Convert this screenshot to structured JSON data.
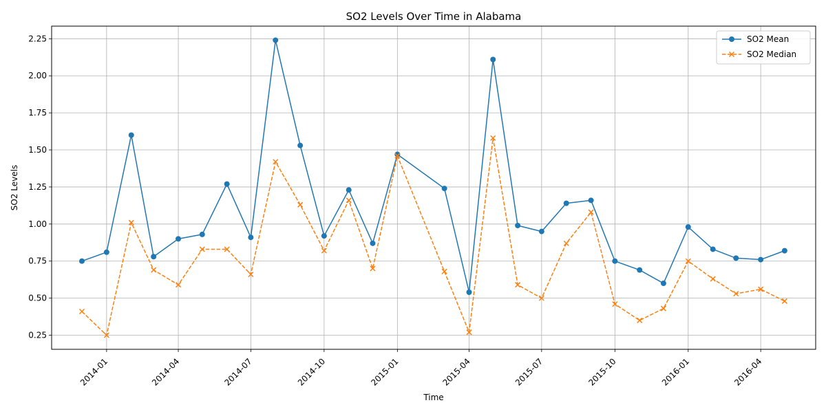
{
  "chart_data": {
    "type": "line",
    "title": "SO2 Levels Over Time in Alabama",
    "xlabel": "Time",
    "ylabel": "SO2 Levels",
    "x": [
      "2013-12-01",
      "2014-01-01",
      "2014-02-01",
      "2014-03-01",
      "2014-04-01",
      "2014-05-01",
      "2014-06-01",
      "2014-07-01",
      "2014-08-01",
      "2014-09-01",
      "2014-10-01",
      "2014-11-01",
      "2014-12-01",
      "2015-01-01",
      "2015-03-01",
      "2015-04-01",
      "2015-05-01",
      "2015-06-01",
      "2015-07-01",
      "2015-08-01",
      "2015-09-01",
      "2015-10-01",
      "2015-11-01",
      "2015-12-01",
      "2016-01-01",
      "2016-02-01",
      "2016-03-01",
      "2016-04-01",
      "2016-05-01"
    ],
    "series": [
      {
        "name": "SO2 Mean",
        "color": "#1f77b4",
        "line_style": "solid",
        "marker": "circle",
        "values": [
          0.75,
          0.81,
          1.6,
          0.78,
          0.9,
          0.93,
          1.27,
          0.91,
          2.24,
          1.53,
          0.92,
          1.23,
          0.87,
          1.47,
          1.24,
          0.54,
          2.11,
          0.99,
          0.95,
          1.14,
          1.16,
          0.75,
          0.69,
          0.6,
          0.98,
          0.83,
          0.77,
          0.76,
          0.82
        ]
      },
      {
        "name": "SO2 Median",
        "color": "#ff7f0e",
        "line_style": "dashed",
        "marker": "x",
        "values": [
          0.41,
          0.25,
          1.01,
          0.69,
          0.59,
          0.83,
          0.83,
          0.66,
          1.42,
          1.13,
          0.82,
          1.16,
          0.7,
          1.46,
          0.68,
          0.27,
          1.58,
          0.59,
          0.5,
          0.87,
          1.08,
          0.46,
          0.35,
          0.43,
          0.75,
          0.63,
          0.53,
          0.56,
          0.48
        ]
      }
    ],
    "x_ticks": [
      "2014-01",
      "2014-04",
      "2014-07",
      "2014-10",
      "2015-01",
      "2015-04",
      "2015-07",
      "2015-10",
      "2016-01",
      "2016-04"
    ],
    "y_ticks": [
      "0.25",
      "0.50",
      "0.75",
      "1.00",
      "1.25",
      "1.50",
      "1.75",
      "2.00",
      "2.25"
    ],
    "xlim": [
      "2013-10-24",
      "2016-06-09"
    ],
    "ylim": [
      0.155,
      2.335
    ],
    "grid": true,
    "legend_position": "top-right"
  }
}
